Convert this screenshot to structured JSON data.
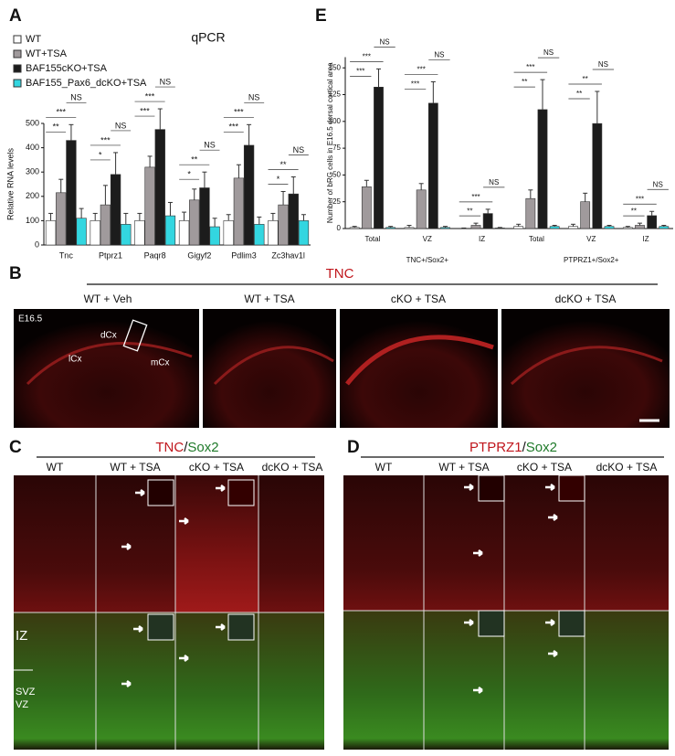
{
  "chart_data": [
    {
      "type": "bar",
      "panel_label": "A",
      "title": "qPCR",
      "ylabel": "Relative RNA levels",
      "categories": [
        "Tnc",
        "Ptprz1",
        "Paqr8",
        "Gigyf2",
        "Pdlim3",
        "Zc3hav1l"
      ],
      "series": [
        {
          "name": "WT",
          "color": "#ffffff",
          "values": [
            100,
            100,
            100,
            100,
            100,
            100
          ],
          "errors": [
            30,
            30,
            30,
            35,
            25,
            30
          ]
        },
        {
          "name": "WT+TSA",
          "color": "#a09a9c",
          "values": [
            215,
            165,
            320,
            185,
            275,
            165
          ],
          "errors": [
            55,
            80,
            45,
            45,
            55,
            55
          ]
        },
        {
          "name": "BAF155cKO+TSA",
          "color": "#1c1c1c",
          "values": [
            430,
            290,
            475,
            235,
            410,
            210
          ],
          "errors": [
            65,
            90,
            85,
            65,
            85,
            70
          ]
        },
        {
          "name": "BAF155_Pax6_dcKO+TSA",
          "color": "#33d6e0",
          "values": [
            110,
            85,
            120,
            75,
            85,
            100
          ],
          "errors": [
            40,
            45,
            55,
            35,
            30,
            25
          ]
        }
      ],
      "annotations": [
        [
          "**",
          "***",
          "NS"
        ],
        [
          "*",
          "***",
          "NS"
        ],
        [
          "***",
          "***",
          "NS"
        ],
        [
          "*",
          "**",
          "NS"
        ],
        [
          "***",
          "***",
          "NS"
        ],
        [
          "*",
          "**",
          "NS"
        ]
      ],
      "ylim": [
        0,
        500
      ],
      "yticks": [
        0,
        100,
        200,
        300,
        400,
        500
      ]
    },
    {
      "type": "bar",
      "panel_label": "E",
      "ylabel": "Number of bRG cells in E16.5 dorsal cortical area",
      "categories": [
        "Total",
        "VZ",
        "IZ",
        "Total",
        "VZ",
        "IZ"
      ],
      "category_groups": [
        "TNC+/Sox2+",
        "PTPRZ1+/Sox2+"
      ],
      "series": [
        {
          "color": "#ffffff",
          "values": [
            1,
            1,
            0,
            2,
            2,
            1
          ],
          "errors": [
            1,
            2,
            0.5,
            2,
            2,
            1
          ]
        },
        {
          "color": "#a09a9c",
          "values": [
            39,
            36,
            3,
            28,
            25,
            3
          ],
          "errors": [
            6,
            6,
            2,
            8,
            8,
            2
          ]
        },
        {
          "color": "#1c1c1c",
          "values": [
            132,
            117,
            14,
            111,
            98,
            12
          ],
          "errors": [
            17,
            20,
            4,
            28,
            30,
            4
          ]
        },
        {
          "color": "#33d6e0",
          "values": [
            1,
            1,
            0.5,
            2,
            2,
            2
          ],
          "errors": [
            1,
            1,
            0.5,
            1,
            1,
            1
          ]
        }
      ],
      "annotations": [
        [
          "***",
          "***",
          "NS"
        ],
        [
          "***",
          "***",
          "NS"
        ],
        [
          "**",
          "***",
          "NS"
        ],
        [
          "**",
          "***",
          "NS"
        ],
        [
          "**",
          "**",
          "NS"
        ],
        [
          "**",
          "***",
          "NS"
        ]
      ],
      "ylim": [
        0,
        160
      ],
      "yticks": [
        0,
        25,
        50,
        75,
        100,
        125,
        150
      ]
    }
  ],
  "panel_b": {
    "label": "B",
    "title": "TNC",
    "columns": [
      "WT + Veh",
      "WT + TSA",
      "cKO + TSA",
      "dcKO + TSA"
    ],
    "image_labels": [
      "E16.5",
      "dCx",
      "lCx",
      "mCx"
    ]
  },
  "panel_c": {
    "label": "C",
    "title": [
      "TNC",
      "/",
      "Sox2"
    ],
    "columns": [
      "WT",
      "WT + TSA",
      "cKO + TSA",
      "dcKO + TSA"
    ],
    "zone_labels": [
      "IZ",
      "SVZ",
      "VZ"
    ]
  },
  "panel_d": {
    "label": "D",
    "title": [
      "PTPRZ1",
      "/",
      "Sox2"
    ],
    "columns": [
      "WT",
      "WT + TSA",
      "cKO + TSA",
      "dcKO + TSA"
    ]
  }
}
